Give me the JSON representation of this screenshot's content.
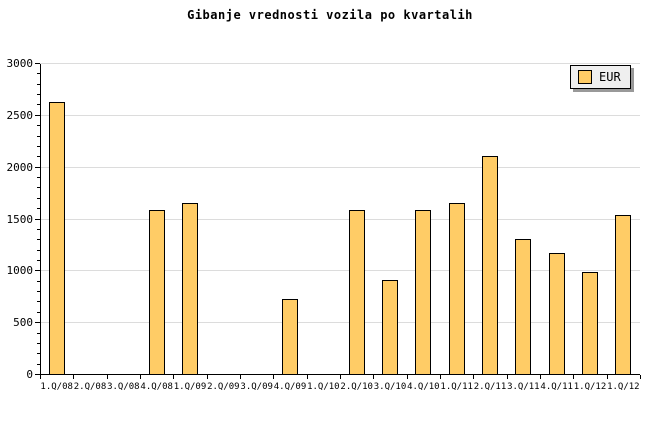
{
  "title": "Gibanje vrednosti vozila po kvartalih",
  "legend": {
    "label": "EUR"
  },
  "chart_data": {
    "type": "bar",
    "title": "Gibanje vrednosti vozila po kvartalih",
    "categories": [
      "1.Q/08",
      "2.Q/08",
      "3.Q/08",
      "4.Q/08",
      "1.Q/09",
      "2.Q/09",
      "3.Q/09",
      "4.Q/09",
      "1.Q/10",
      "2.Q/10",
      "3.Q/10",
      "4.Q/10",
      "1.Q/11",
      "2.Q/11",
      "3.Q/11",
      "4.Q/11",
      "1.Q/12",
      "1.Q/12"
    ],
    "series": [
      {
        "name": "EUR",
        "values": [
          2630,
          0,
          0,
          1590,
          1660,
          0,
          0,
          730,
          0,
          1590,
          920,
          1590,
          1660,
          2110,
          1310,
          1180,
          990,
          1540
        ]
      }
    ],
    "xlabel": "",
    "ylabel": "",
    "ylim": [
      0,
      3000
    ],
    "yticks": [
      0,
      500,
      1000,
      1500,
      2000,
      2500,
      3000
    ],
    "y_minor_step": 100,
    "grid": "horizontal-major",
    "legend_position": "top-right",
    "colors": {
      "bar_fill": "#FFCC66",
      "bar_border": "#000000",
      "grid_line": "#DCDCDC",
      "axis": "#000000",
      "legend_bg": "#EFEFEF",
      "legend_shadow": "#999999",
      "background": "#FFFFFF",
      "text": "#000000"
    }
  }
}
